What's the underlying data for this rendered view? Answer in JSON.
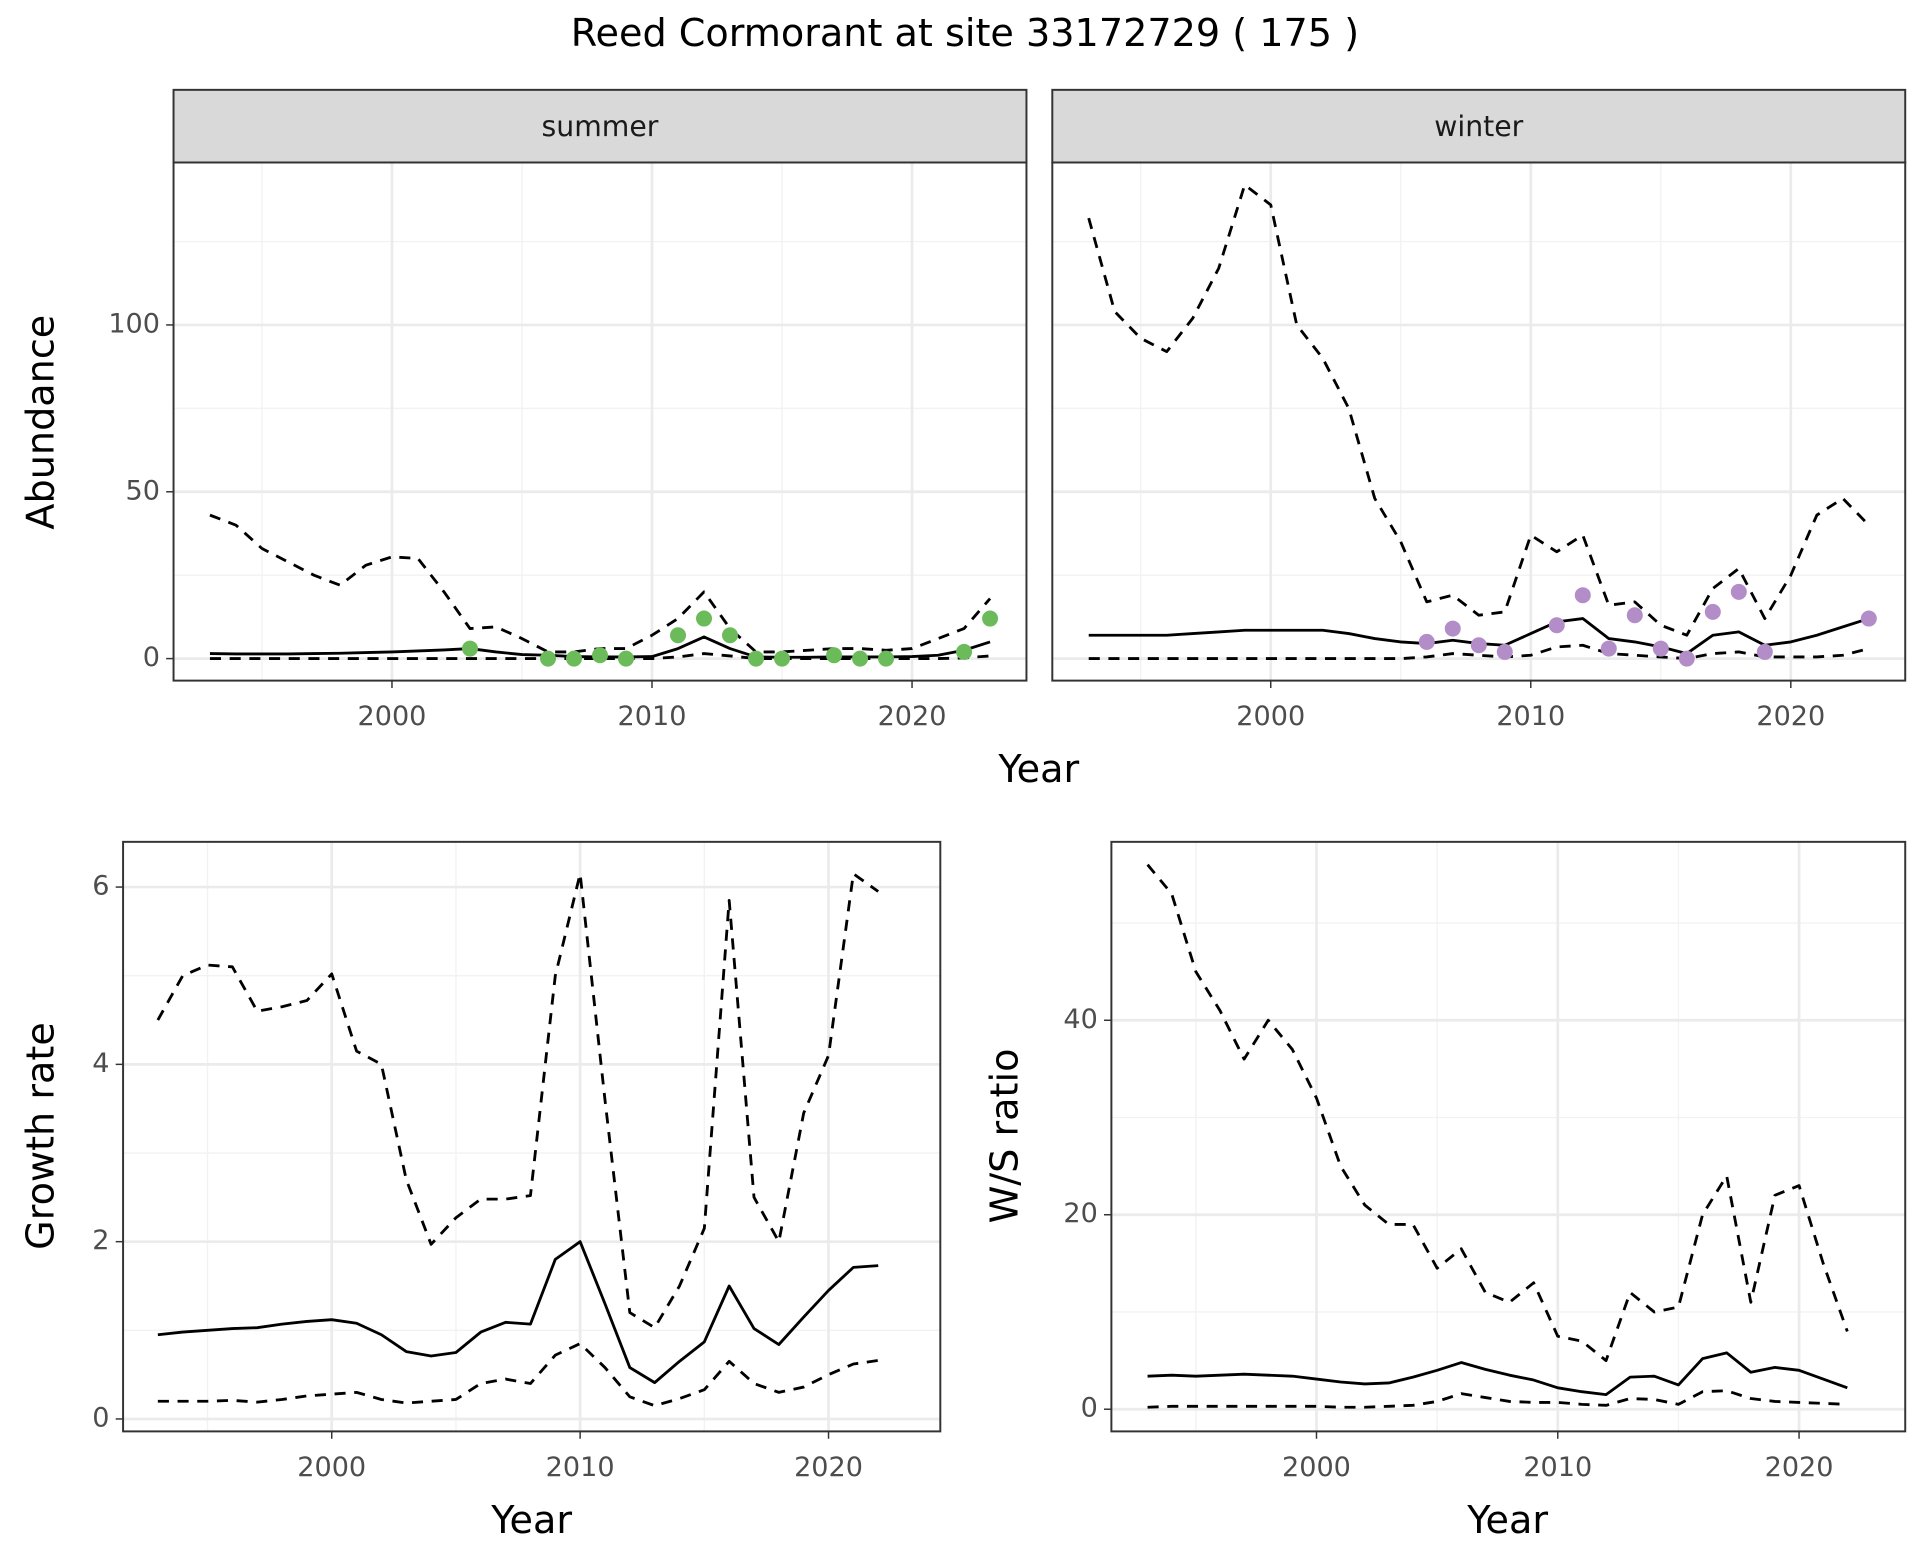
{
  "title": "Reed Cormorant at site 33172729 ( 175 )",
  "chart_data": [
    {
      "type": "line",
      "facet": "summer",
      "ylabel": "Abundance",
      "xlabel": "Year",
      "x": [
        1993,
        1994,
        1995,
        1996,
        1997,
        1998,
        1999,
        2000,
        2001,
        2002,
        2003,
        2004,
        2005,
        2006,
        2007,
        2008,
        2009,
        2010,
        2011,
        2012,
        2013,
        2014,
        2015,
        2016,
        2017,
        2018,
        2019,
        2020,
        2021,
        2022,
        2023
      ],
      "series": [
        {
          "color": "#000000",
          "dash": false,
          "values": [
            1.5,
            1.4,
            1.4,
            1.4,
            1.5,
            1.6,
            1.8,
            2.0,
            2.3,
            2.6,
            3.0,
            2.0,
            1.2,
            1.0,
            0.6,
            0.5,
            0.5,
            0.6,
            3.0,
            6.5,
            3.0,
            0.5,
            0.4,
            0.4,
            0.5,
            0.5,
            0.5,
            0.6,
            1.0,
            2.5,
            5.0
          ]
        },
        {
          "color": "#000000",
          "dash": true,
          "values": [
            43,
            40,
            33,
            29,
            25,
            22,
            28,
            30.5,
            30,
            20,
            9,
            9.5,
            6,
            2,
            2,
            3,
            3,
            7,
            12,
            20,
            9,
            2,
            2,
            2.5,
            3,
            3,
            2.5,
            3,
            6,
            9,
            18
          ]
        },
        {
          "color": "#000000",
          "dash": true,
          "values": [
            0,
            0,
            0,
            0,
            0,
            0,
            0,
            0,
            0,
            0,
            0,
            0,
            0,
            0,
            0,
            0,
            0,
            0,
            0.5,
            1.5,
            0.8,
            0,
            0,
            0,
            0,
            0,
            0,
            0,
            0,
            0.2,
            0.8
          ]
        }
      ],
      "points": {
        "color": "#6cbb5a",
        "x": [
          2003,
          2006,
          2007,
          2008,
          2009,
          2011,
          2012,
          2013,
          2014,
          2015,
          2017,
          2018,
          2019,
          2022,
          2023
        ],
        "values": [
          3,
          0,
          0,
          1,
          0,
          7,
          12,
          7,
          0,
          0,
          1,
          0,
          0,
          2,
          12
        ]
      },
      "xlim": [
        1991.6,
        2024.4
      ],
      "ylim": [
        -6.6,
        148.7
      ],
      "xticks": [
        2000,
        2010,
        2020
      ],
      "yticks": [
        0,
        50,
        100
      ],
      "xminor": [
        1995,
        2005,
        2015
      ],
      "yminor": [
        25,
        75,
        125
      ],
      "grid": true
    },
    {
      "type": "line",
      "facet": "winter",
      "x": [
        1993,
        1994,
        1995,
        1996,
        1997,
        1998,
        1999,
        2000,
        2001,
        2002,
        2003,
        2004,
        2005,
        2006,
        2007,
        2008,
        2009,
        2010,
        2011,
        2012,
        2013,
        2014,
        2015,
        2016,
        2017,
        2018,
        2019,
        2020,
        2021,
        2022,
        2023
      ],
      "series": [
        {
          "color": "#000000",
          "dash": false,
          "values": [
            7,
            7,
            7,
            7,
            7.5,
            8,
            8.5,
            8.5,
            8.5,
            8.5,
            7.5,
            6,
            5,
            4.5,
            5.5,
            4.5,
            4,
            7.5,
            11,
            12,
            6,
            5,
            3.5,
            1.5,
            7,
            8,
            4,
            5,
            7,
            9.5,
            12
          ]
        },
        {
          "color": "#000000",
          "dash": true,
          "values": [
            132,
            104,
            96,
            92,
            102,
            117,
            142,
            136,
            100,
            90,
            75,
            48,
            35,
            17,
            19,
            13,
            14,
            37,
            32,
            37,
            16,
            17,
            10,
            7,
            21,
            27,
            12,
            25,
            43,
            48,
            40
          ]
        },
        {
          "color": "#000000",
          "dash": true,
          "values": [
            0,
            0,
            0,
            0,
            0,
            0,
            0,
            0,
            0,
            0,
            0,
            0,
            0,
            0.5,
            1.5,
            1,
            0.5,
            1,
            3.5,
            4,
            1.5,
            1,
            0.5,
            0,
            1.5,
            2,
            0.5,
            0.5,
            0.5,
            1,
            3
          ]
        }
      ],
      "points": {
        "color": "#b28dc8",
        "x": [
          2006,
          2007,
          2008,
          2009,
          2011,
          2012,
          2013,
          2014,
          2015,
          2016,
          2017,
          2018,
          2019,
          2023
        ],
        "values": [
          5,
          9,
          4,
          2,
          10,
          19,
          3,
          13,
          3,
          0,
          14,
          20,
          2,
          12
        ]
      },
      "xlim": [
        1991.6,
        2024.4
      ],
      "ylim": [
        -6.6,
        148.7
      ],
      "xticks": [
        2000,
        2010,
        2020
      ],
      "yticks": [
        0,
        50,
        100
      ],
      "xminor": [
        1995,
        2005,
        2015
      ],
      "yminor": [
        25,
        75,
        125
      ],
      "grid": true
    },
    {
      "type": "line",
      "ylabel": "Growth rate",
      "xlabel": "Year",
      "x": [
        1993,
        1994,
        1995,
        1996,
        1997,
        1998,
        1999,
        2000,
        2001,
        2002,
        2003,
        2004,
        2005,
        2006,
        2007,
        2008,
        2009,
        2010,
        2011,
        2012,
        2013,
        2014,
        2015,
        2016,
        2017,
        2018,
        2019,
        2020,
        2021,
        2022
      ],
      "series": [
        {
          "color": "#000000",
          "dash": false,
          "values": [
            0.95,
            0.98,
            1.0,
            1.02,
            1.03,
            1.07,
            1.1,
            1.12,
            1.08,
            0.95,
            0.76,
            0.71,
            0.75,
            0.98,
            1.09,
            1.07,
            1.8,
            2.0,
            1.3,
            0.58,
            0.41,
            0.65,
            0.87,
            1.5,
            1.02,
            0.84,
            1.15,
            1.45,
            1.71,
            1.73
          ]
        },
        {
          "color": "#000000",
          "dash": true,
          "values": [
            4.5,
            5.0,
            5.12,
            5.1,
            4.6,
            4.65,
            4.72,
            5.02,
            4.15,
            4.0,
            2.7,
            1.97,
            2.27,
            2.48,
            2.48,
            2.52,
            5.0,
            6.15,
            3.6,
            1.2,
            1.03,
            1.5,
            2.15,
            5.85,
            2.5,
            2.0,
            3.45,
            4.1,
            6.15,
            5.95
          ]
        },
        {
          "color": "#000000",
          "dash": true,
          "values": [
            0.2,
            0.2,
            0.2,
            0.21,
            0.19,
            0.22,
            0.26,
            0.28,
            0.3,
            0.22,
            0.18,
            0.2,
            0.22,
            0.4,
            0.45,
            0.4,
            0.72,
            0.85,
            0.58,
            0.25,
            0.15,
            0.23,
            0.33,
            0.65,
            0.4,
            0.3,
            0.36,
            0.5,
            0.62,
            0.66
          ]
        }
      ],
      "xlim": [
        1991.6,
        2024.5
      ],
      "ylim": [
        -0.14,
        6.51
      ],
      "xticks": [
        2000,
        2010,
        2020
      ],
      "yticks": [
        0,
        2,
        4,
        6
      ],
      "xminor": [
        1995,
        2005,
        2015
      ],
      "yminor": [
        1,
        3,
        5
      ],
      "grid": true
    },
    {
      "type": "line",
      "ylabel": "W/S ratio",
      "xlabel": "Year",
      "x": [
        1993,
        1994,
        1995,
        1996,
        1997,
        1998,
        1999,
        2000,
        2001,
        2002,
        2003,
        2004,
        2005,
        2006,
        2007,
        2008,
        2009,
        2010,
        2011,
        2012,
        2013,
        2014,
        2015,
        2016,
        2017,
        2018,
        2019,
        2020,
        2021,
        2022
      ],
      "series": [
        {
          "color": "#000000",
          "dash": false,
          "values": [
            3.4,
            3.5,
            3.4,
            3.5,
            3.6,
            3.5,
            3.4,
            3.1,
            2.8,
            2.6,
            2.7,
            3.3,
            4.0,
            4.8,
            4.1,
            3.5,
            3.0,
            2.2,
            1.8,
            1.5,
            3.3,
            3.4,
            2.5,
            5.2,
            5.8,
            3.8,
            4.3,
            4.0,
            3.1,
            2.2
          ]
        },
        {
          "color": "#000000",
          "dash": true,
          "values": [
            56,
            53,
            45,
            41,
            36,
            40,
            37,
            32,
            25,
            21,
            19,
            19,
            14.5,
            16.5,
            12,
            11,
            13,
            7.5,
            7,
            5,
            12,
            10,
            10.5,
            20,
            24,
            11,
            22,
            23,
            15,
            8
          ]
        },
        {
          "color": "#000000",
          "dash": true,
          "values": [
            0.2,
            0.3,
            0.3,
            0.3,
            0.3,
            0.3,
            0.3,
            0.3,
            0.2,
            0.2,
            0.3,
            0.4,
            0.8,
            1.6,
            1.2,
            0.8,
            0.7,
            0.7,
            0.5,
            0.4,
            1.1,
            1.0,
            0.5,
            1.8,
            1.9,
            1.1,
            0.8,
            0.7,
            0.6,
            0.5
          ]
        }
      ],
      "xlim": [
        1991.5,
        2024.4
      ],
      "ylim": [
        -2.28,
        58.35
      ],
      "xticks": [
        2000,
        2010,
        2020
      ],
      "yticks": [
        0,
        20,
        40
      ],
      "xminor": [
        1995,
        2005,
        2015
      ],
      "yminor": [
        10,
        30,
        50
      ],
      "grid": true
    }
  ]
}
